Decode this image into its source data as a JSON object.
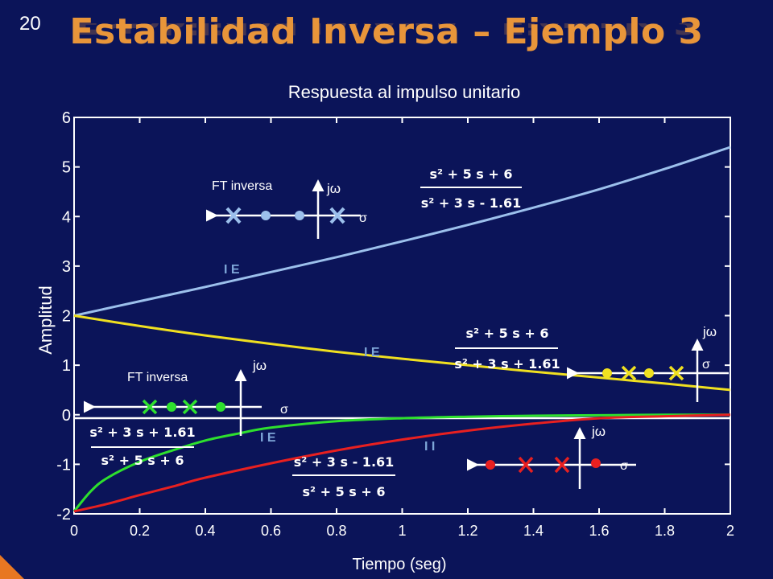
{
  "slide": {
    "number": "20",
    "title": "Estabilidad Inversa – Ejemplo 3",
    "title_color": "#e8953a",
    "background": "#0b1459"
  },
  "chart_data": {
    "type": "line",
    "title": "Respuesta al impulso unitario",
    "xlabel": "Tiempo (seg)",
    "ylabel": "Amplitud",
    "xlim": [
      0,
      2
    ],
    "ylim": [
      -2,
      6
    ],
    "xticks": [
      "0",
      "0.2",
      "0.4",
      "0.6",
      "0.8",
      "1",
      "1.2",
      "1.4",
      "1.6",
      "1.8",
      "2"
    ],
    "yticks": [
      "-2",
      "-1",
      "0",
      "1",
      "2",
      "3",
      "4",
      "5",
      "6"
    ],
    "grid": false,
    "series": [
      {
        "color": "#9cc0ec",
        "x": [
          0,
          0.2,
          0.4,
          0.6,
          0.8,
          1.0,
          1.2,
          1.4,
          1.6,
          1.8,
          2.0
        ],
        "y": [
          2.0,
          2.29,
          2.58,
          2.88,
          3.18,
          3.5,
          3.83,
          4.18,
          4.55,
          4.96,
          5.4
        ]
      },
      {
        "color": "#f0e020",
        "x": [
          0,
          0.2,
          0.4,
          0.6,
          0.8,
          1.0,
          1.2,
          1.4,
          1.6,
          1.8,
          2.0
        ],
        "y": [
          2.0,
          1.79,
          1.6,
          1.43,
          1.27,
          1.13,
          1.0,
          0.87,
          0.75,
          0.63,
          0.5
        ]
      },
      {
        "color": "#2ee02e",
        "x": [
          0,
          0.05,
          0.1,
          0.2,
          0.3,
          0.4,
          0.5,
          0.6,
          0.8,
          1.0,
          1.2,
          1.4,
          1.6,
          1.8,
          2.0
        ],
        "y": [
          -1.95,
          -1.55,
          -1.28,
          -0.95,
          -0.72,
          -0.52,
          -0.38,
          -0.26,
          -0.13,
          -0.07,
          -0.04,
          -0.02,
          -0.01,
          0.0,
          0.0
        ]
      },
      {
        "color": "#e82020",
        "x": [
          0,
          0.1,
          0.2,
          0.3,
          0.4,
          0.6,
          0.8,
          1.0,
          1.2,
          1.4,
          1.6,
          1.8,
          2.0
        ],
        "y": [
          -1.95,
          -1.8,
          -1.62,
          -1.45,
          -1.27,
          -0.98,
          -0.72,
          -0.5,
          -0.32,
          -0.18,
          -0.07,
          -0.03,
          0.0
        ]
      }
    ],
    "annotations": {
      "blue": {
        "ft_label": "FT inversa",
        "jw": "jω",
        "sigma": "σ",
        "region": "I E",
        "numerator": "s² + 5 s + 6",
        "denominator": "s² + 3 s - 1.61"
      },
      "yellow": {
        "jw": "jω",
        "sigma": "σ",
        "region": "I E",
        "numerator": "s² + 5 s + 6",
        "denominator": "s² + 3 s + 1.61"
      },
      "green": {
        "ft_label": "FT inversa",
        "jw": "jω",
        "sigma": "σ",
        "region": "I E",
        "numerator": "s² + 3 s + 1.61",
        "denominator": "s² + 5 s + 6"
      },
      "red": {
        "jw": "jω",
        "sigma": "σ",
        "region": "I I",
        "numerator": "s² + 3 s - 1.61",
        "denominator": "s² + 5 s + 6"
      }
    }
  }
}
